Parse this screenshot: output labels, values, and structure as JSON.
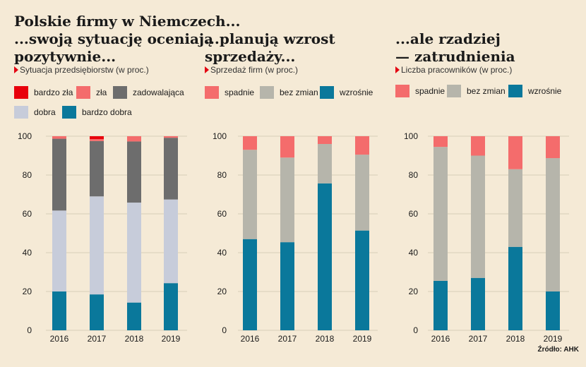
{
  "titles": {
    "main": "Polskie firmy w Niemczech...\n...swoją sytuację oceniają\npozytywnie...",
    "middle": "...planują wzrost\nsprzedaży...",
    "right": "...ale rzadziej\n— zatrudnienia"
  },
  "source": "Źródło: AHK",
  "colors": {
    "background": "#f5ead6",
    "bardzo_zla": "#e8000b",
    "zla": "#f46c6c",
    "zadowalajaca": "#6d6d6d",
    "dobra": "#c7ccda",
    "bardzo_dobra": "#0a789b",
    "spadnie": "#f46c6c",
    "bez_zmian": "#b6b5ab",
    "wzrosnie": "#0a789b",
    "subtitle_marker": "#e30613"
  },
  "chart_data": [
    {
      "type": "bar",
      "stacked": true,
      "subtitle": "Sytuacja przedsiębiorstw (w proc.)",
      "categories": [
        "2016",
        "2017",
        "2018",
        "2019"
      ],
      "ylim": [
        0,
        100
      ],
      "yticks": [
        "0",
        "20",
        "40",
        "60",
        "80",
        "100"
      ],
      "series": [
        {
          "name": "bardzo dobra",
          "color": "#0a789b",
          "values": [
            20,
            18.5,
            14.3,
            24.3
          ]
        },
        {
          "name": "dobra",
          "color": "#c7ccda",
          "values": [
            41.7,
            50.5,
            51.5,
            43.1
          ]
        },
        {
          "name": "zadowalająca",
          "color": "#6d6d6d",
          "values": [
            37,
            28.5,
            31.5,
            31.8
          ]
        },
        {
          "name": "zła",
          "color": "#f46c6c",
          "values": [
            1.3,
            1,
            2.7,
            0.8
          ]
        },
        {
          "name": "bardzo zła",
          "color": "#e8000b",
          "values": [
            0,
            1.5,
            0,
            0
          ]
        }
      ],
      "legend": [
        {
          "name": "bardzo zła",
          "color": "#e8000b"
        },
        {
          "name": "zła",
          "color": "#f46c6c"
        },
        {
          "name": "zadowalająca",
          "color": "#6d6d6d"
        },
        {
          "name": "dobra",
          "color": "#c7ccda"
        },
        {
          "name": "bardzo dobra",
          "color": "#0a789b"
        }
      ]
    },
    {
      "type": "bar",
      "stacked": true,
      "subtitle": "Sprzedaż firm (w proc.)",
      "categories": [
        "2016",
        "2017",
        "2018",
        "2019"
      ],
      "ylim": [
        0,
        100
      ],
      "yticks": [
        "0",
        "20",
        "40",
        "60",
        "80",
        "100"
      ],
      "series": [
        {
          "name": "wzrośnie",
          "color": "#0a789b",
          "values": [
            47,
            45.4,
            75.7,
            51.4
          ]
        },
        {
          "name": "bez zmian",
          "color": "#b6b5ab",
          "values": [
            46,
            43.6,
            20.3,
            39.1
          ]
        },
        {
          "name": "spadnie",
          "color": "#f46c6c",
          "values": [
            7,
            11,
            4,
            9.5
          ]
        }
      ],
      "legend": [
        {
          "name": "spadnie",
          "color": "#f46c6c"
        },
        {
          "name": "bez zmian",
          "color": "#b6b5ab"
        },
        {
          "name": "wzrośnie",
          "color": "#0a789b"
        }
      ]
    },
    {
      "type": "bar",
      "stacked": true,
      "subtitle": "Liczba pracowników (w proc.)",
      "categories": [
        "2016",
        "2017",
        "2018",
        "2019"
      ],
      "ylim": [
        0,
        100
      ],
      "yticks": [
        "0",
        "20",
        "40",
        "60",
        "80",
        "100"
      ],
      "series": [
        {
          "name": "wzrośnie",
          "color": "#0a789b",
          "values": [
            25.5,
            27,
            43,
            20
          ]
        },
        {
          "name": "bez zmian",
          "color": "#b6b5ab",
          "values": [
            69,
            63,
            40,
            68.7
          ]
        },
        {
          "name": "spadnie",
          "color": "#f46c6c",
          "values": [
            5.5,
            10,
            17,
            11.3
          ]
        }
      ],
      "legend": [
        {
          "name": "spadnie",
          "color": "#f46c6c"
        },
        {
          "name": "bez zmian",
          "color": "#b6b5ab"
        },
        {
          "name": "wzrośnie",
          "color": "#0a789b"
        }
      ]
    }
  ]
}
